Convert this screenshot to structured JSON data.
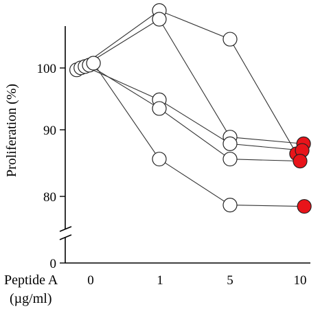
{
  "chart_data": {
    "type": "line",
    "title": "",
    "xlabel": "Peptide A",
    "xlabel_unit": "(µg/ml)",
    "ylabel": "Proliferation (%)",
    "categories": [
      "0",
      "1",
      "5",
      "10"
    ],
    "y_ticks": [
      "0",
      "80",
      "90",
      "100"
    ],
    "ylim": [
      75,
      108
    ],
    "axis_break": true,
    "grid": false,
    "legend": "none",
    "colors": {
      "open_marker": "#ffffff",
      "filled_marker": "#e8141a",
      "line": "#333333"
    },
    "series": [
      {
        "values": [
          99.0,
          107.9,
          103.6,
          86.4
        ]
      },
      {
        "values": [
          99.3,
          106.6,
          88.9,
          87.9
        ]
      },
      {
        "values": [
          99.5,
          94.5,
          87.9,
          86.9
        ]
      },
      {
        "values": [
          99.7,
          93.2,
          85.6,
          85.3
        ]
      },
      {
        "values": [
          100.0,
          85.6,
          78.7,
          78.5
        ]
      }
    ],
    "x_jitter": [
      [
        -0.18,
        0,
        0,
        -0.05
      ],
      [
        -0.12,
        0,
        0,
        0.05
      ],
      [
        -0.06,
        0,
        0,
        0.03
      ],
      [
        0.0,
        0,
        0,
        0.0
      ],
      [
        0.06,
        0,
        0,
        0.06
      ]
    ]
  }
}
